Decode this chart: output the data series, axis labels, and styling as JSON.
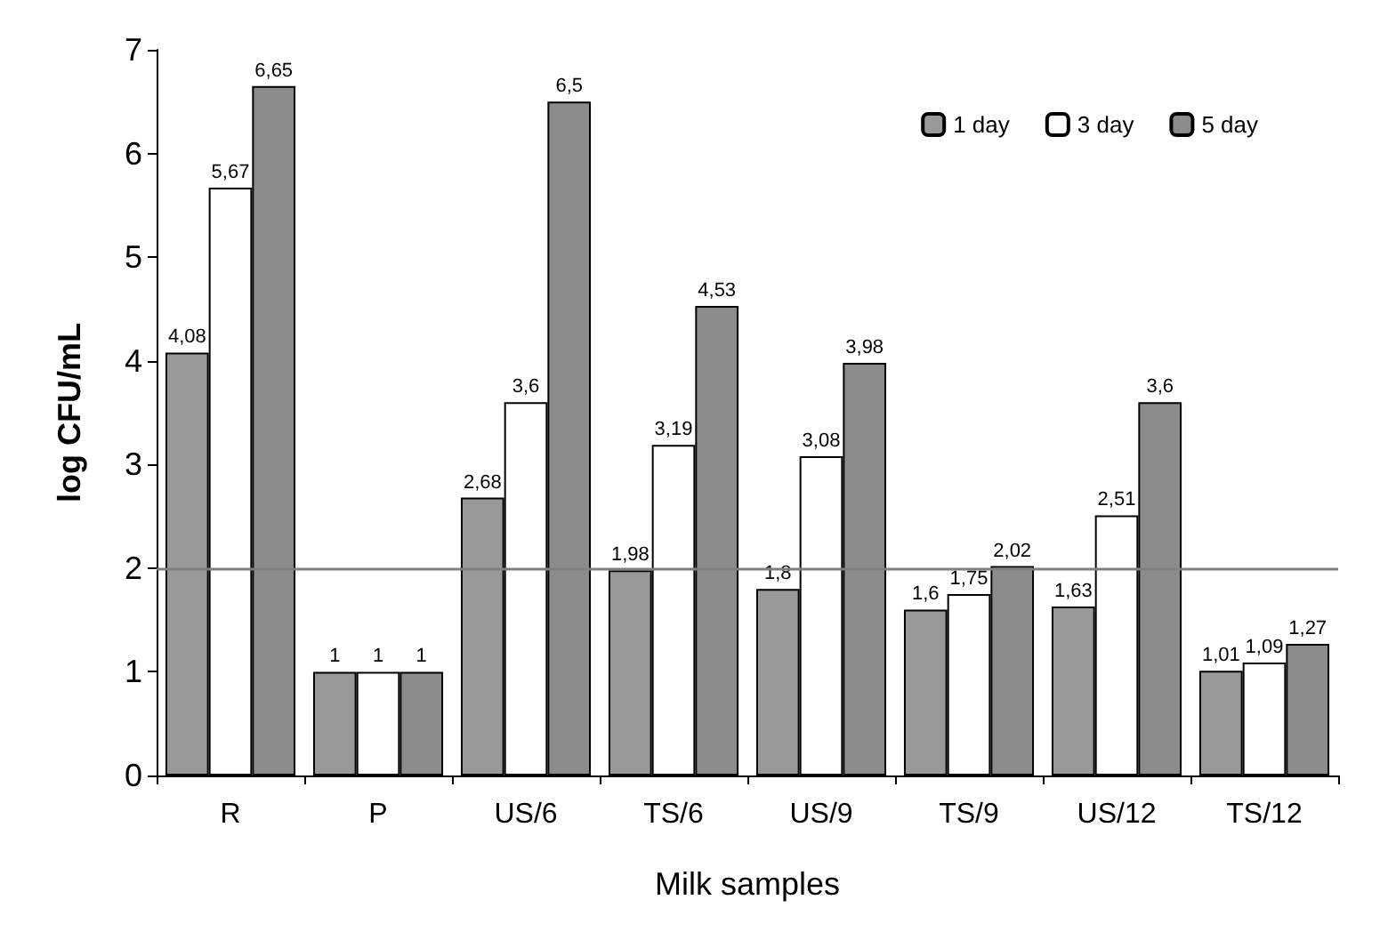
{
  "chart_data": {
    "type": "bar",
    "xlabel": "Milk samples",
    "ylabel": "log CFU/mL",
    "categories": [
      "R",
      "P",
      "US/6",
      "TS/6",
      "US/9",
      "TS/9",
      "US/12",
      "TS/12"
    ],
    "series": [
      {
        "name": "1 day",
        "color": "#999999",
        "values": [
          4.08,
          1,
          2.68,
          1.98,
          1.8,
          1.6,
          1.63,
          1.01
        ],
        "value_labels": [
          "4,08",
          "1",
          "2,68",
          "1,98",
          "1,8",
          "1,6",
          "1,63",
          "1,01"
        ]
      },
      {
        "name": "3 day",
        "color": "#ffffff",
        "values": [
          5.67,
          1,
          3.6,
          3.19,
          3.08,
          1.75,
          2.51,
          1.09
        ],
        "value_labels": [
          "5,67",
          "1",
          "3,6",
          "3,19",
          "3,08",
          "1,75",
          "2,51",
          "1,09"
        ]
      },
      {
        "name": "5 day",
        "color": "#8c8c8c",
        "values": [
          6.65,
          1,
          6.5,
          4.53,
          3.98,
          2.02,
          3.6,
          1.27
        ],
        "value_labels": [
          "6,65",
          "1",
          "6,5",
          "4,53",
          "3,98",
          "2,02",
          "3,6",
          "1,27"
        ]
      }
    ],
    "ylim": [
      0,
      7
    ],
    "yticks": [
      0,
      1,
      2,
      3,
      4,
      5,
      6,
      7
    ],
    "grid": false,
    "legend": "top right",
    "ref_lines": [
      {
        "axis": "y",
        "value": 2,
        "color": "#808080"
      }
    ]
  }
}
